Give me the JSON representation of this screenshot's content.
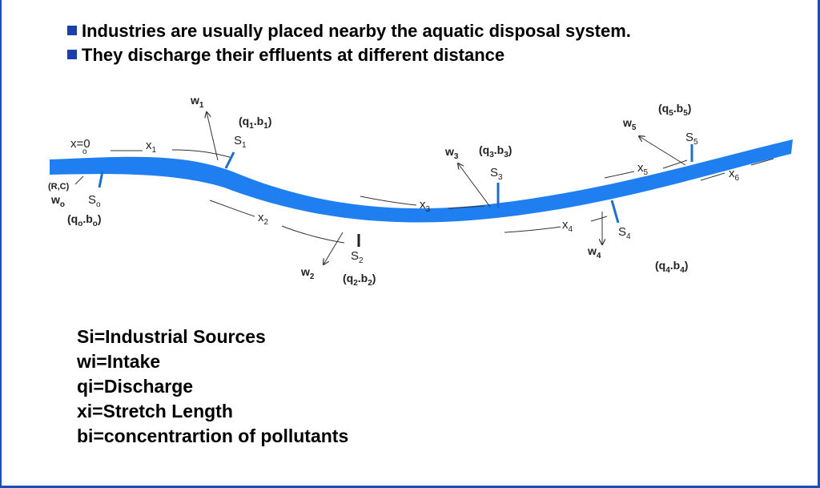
{
  "bullets": [
    "Industries are usually placed nearby the aquatic disposal system.",
    "They discharge their effluents at different distance"
  ],
  "legend": [
    "Si=Industrial Sources",
    "wi=Intake",
    "qi=Discharge",
    "xi=Stretch Length",
    "bi=concentrartion of pollutants"
  ],
  "diagram": {
    "origin": "x=0",
    "origin_sub": "o",
    "rc": "(R,C)",
    "w0": "w",
    "w0_sub": "o",
    "s0": "S",
    "s0_sub": "o",
    "q0": "(q",
    "q0_sub": "o",
    "b0": ".b",
    "b0_sub": "o",
    "q0_close": ")",
    "w1": "w",
    "w1_sub": "1",
    "s1": "S",
    "s1_sub": "1",
    "q1": "(q",
    "q1_sub": "1",
    "b1": ".b",
    "b1_sub": "1",
    "q1_close": ")",
    "x1": "x",
    "x1_sub": "1",
    "x2": "x",
    "x2_sub": "2",
    "w2": "w",
    "w2_sub": "2",
    "s2": "S",
    "s2_sub": "2",
    "q2": "(q",
    "q2_sub": "2",
    "b2": ".b",
    "b2_sub": "2",
    "q2_close": ")",
    "w3": "w",
    "w3_sub": "3",
    "s3": "S",
    "s3_sub": "3",
    "q3": "(q",
    "q3_sub": "3",
    "b3": ".b",
    "b3_sub": "3",
    "q3_close": ")",
    "x3": "x",
    "x3_sub": "3",
    "x4": "x",
    "x4_sub": "4",
    "w4": "w",
    "w4_sub": "4",
    "s4": "S",
    "s4_sub": "4",
    "q4": "(q",
    "q4_sub": "4",
    "b4": ".b",
    "b4_sub": "4",
    "q4_close": ")",
    "x5": "x",
    "x5_sub": "5",
    "w5": "w",
    "w5_sub": "5",
    "s5": "S",
    "s5_sub": "5",
    "q5": "(q",
    "q5_sub": "5",
    "b5": ".b",
    "b5_sub": "5",
    "q5_close": ")",
    "x6": "x",
    "x6_sub": "6",
    "colors": {
      "river": "#1f7ef0",
      "outfall": "#1a6fd0",
      "frame": "#1a4fb5",
      "bullet": "#1a3fa8"
    }
  }
}
